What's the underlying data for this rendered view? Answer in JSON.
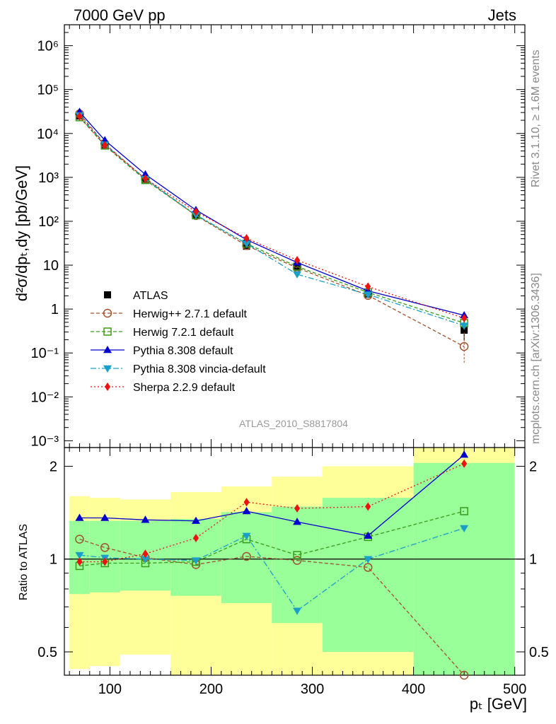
{
  "header": {
    "left": "7000 GeV pp",
    "right": "Jets"
  },
  "side": {
    "rivet": "Rivet 3.1.10, ≥ 1.6M events",
    "mcplots": "mcplots.cern.ch [arXiv:1306.3436]"
  },
  "analysis_id": "ATLAS_2010_S8817804",
  "colors": {
    "ATLAS": "#000000",
    "Herwig++": "#a0522d",
    "Herwig7": "#3a9a1a",
    "Pythia": "#0000cc",
    "Vincia": "#1aa0c8",
    "Sherpa": "#ee1111",
    "band_outer": "#ffff99",
    "band_inner": "#99ff99"
  },
  "chart_data": [
    {
      "type": "line",
      "ylabel": "d²σ/dpₜ,dy [pb/GeV]",
      "yscale": "log",
      "ylim": [
        0.0007,
        3000000
      ],
      "xlim": [
        55,
        510
      ],
      "yticks": [
        "10⁻³",
        "10⁻²",
        "10⁻¹",
        "1",
        "10",
        "10²",
        "10³",
        "10⁴",
        "10⁵",
        "10⁶"
      ],
      "x": [
        70,
        95,
        135,
        185,
        235,
        285,
        355,
        450
      ],
      "series": [
        {
          "name": "ATLAS",
          "values": [
            25000,
            5500,
            900,
            140,
            27,
            9,
            2.2,
            0.33
          ]
        },
        {
          "name": "Herwig++ 2.7.1 default",
          "values": [
            28000,
            5800,
            920,
            135,
            28,
            8.7,
            2.05,
            0.14
          ]
        },
        {
          "name": "Herwig 7.2.1 default",
          "values": [
            23500,
            5300,
            870,
            137,
            31,
            9.3,
            2.4,
            0.48
          ]
        },
        {
          "name": "Pythia 8.308 default",
          "values": [
            31000,
            7000,
            1170,
            180,
            38,
            11.5,
            2.6,
            0.72
          ]
        },
        {
          "name": "Pythia 8.308 vincia-default",
          "values": [
            26000,
            5600,
            920,
            140,
            31,
            6.2,
            2.15,
            0.42
          ]
        },
        {
          "name": "Sherpa 2.2.9 default",
          "values": [
            24500,
            5400,
            940,
            165,
            41,
            13,
            3.25,
            0.62
          ]
        }
      ]
    },
    {
      "type": "line",
      "ylabel": "Ratio to ATLAS",
      "xlabel": "pₜ [GeV]",
      "yscale": "log",
      "ylim": [
        0.42,
        2.3
      ],
      "xlim": [
        55,
        510
      ],
      "yticks": [
        "0.5",
        "1",
        "2"
      ],
      "xticks": [
        "100",
        "200",
        "300",
        "400",
        "500"
      ],
      "bins": [
        60,
        80,
        110,
        160,
        210,
        260,
        310,
        400,
        500
      ],
      "band_outer_upper": [
        1.6,
        1.58,
        1.56,
        1.65,
        1.72,
        1.85,
        2.0,
        2.4
      ],
      "band_outer_lower": [
        0.44,
        0.45,
        0.49,
        0.38,
        0.38,
        0.38,
        0.38,
        0.38
      ],
      "band_inner_upper": [
        1.33,
        1.33,
        1.33,
        1.35,
        1.42,
        1.48,
        1.58,
        2.05
      ],
      "band_inner_lower": [
        0.77,
        0.78,
        0.79,
        0.76,
        0.72,
        0.62,
        0.5,
        0.38
      ],
      "x": [
        70,
        95,
        135,
        185,
        235,
        285,
        355,
        450
      ],
      "series": [
        {
          "name": "Herwig++ 2.7.1 default",
          "values": [
            1.16,
            1.09,
            1.01,
            0.96,
            1.02,
            0.99,
            0.94,
            0.42
          ]
        },
        {
          "name": "Herwig 7.2.1 default",
          "values": [
            0.95,
            0.97,
            0.97,
            0.98,
            1.16,
            1.03,
            1.18,
            1.43
          ]
        },
        {
          "name": "Pythia 8.308 default",
          "values": [
            1.36,
            1.36,
            1.34,
            1.33,
            1.43,
            1.32,
            1.19,
            2.18
          ]
        },
        {
          "name": "Pythia 8.308 vincia-default",
          "values": [
            1.03,
            1.01,
            1.0,
            0.99,
            1.19,
            0.68,
            1.0,
            1.26
          ]
        },
        {
          "name": "Sherpa 2.2.9 default",
          "values": [
            0.98,
            0.98,
            1.04,
            1.17,
            1.53,
            1.46,
            1.48,
            2.04
          ]
        }
      ]
    }
  ]
}
